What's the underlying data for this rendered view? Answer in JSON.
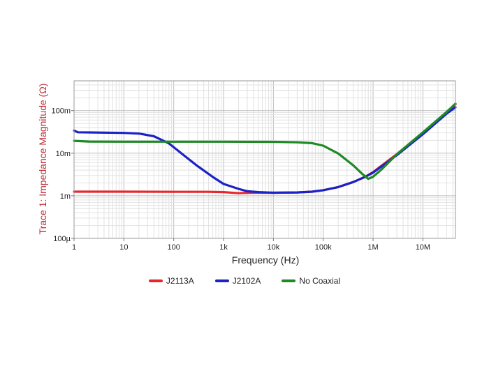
{
  "chart_data": {
    "type": "line",
    "xscale": "log",
    "yscale": "log",
    "xlabel": "Frequency (Hz)",
    "ylabel": "Trace 1: Impedance Magnitude (Ω)",
    "xlim": [
      1,
      45000000
    ],
    "ylim": [
      0.0001,
      0.5
    ],
    "x_ticks": [
      {
        "value": 1,
        "label": "1"
      },
      {
        "value": 10,
        "label": "10"
      },
      {
        "value": 100,
        "label": "100"
      },
      {
        "value": 1000,
        "label": "1k"
      },
      {
        "value": 10000,
        "label": "10k"
      },
      {
        "value": 100000,
        "label": "100k"
      },
      {
        "value": 1000000,
        "label": "1M"
      },
      {
        "value": 10000000,
        "label": "10M"
      }
    ],
    "y_ticks": [
      {
        "value": 0.0001,
        "label": "100µ"
      },
      {
        "value": 0.001,
        "label": "1m"
      },
      {
        "value": 0.01,
        "label": "10m"
      },
      {
        "value": 0.1,
        "label": "100m"
      }
    ],
    "grid": true,
    "legend_position": "bottom-center",
    "series": [
      {
        "name": "J2113A",
        "color": "#e8262b",
        "points": [
          [
            1,
            0.00125
          ],
          [
            10,
            0.00125
          ],
          [
            100,
            0.00124
          ],
          [
            500,
            0.00124
          ],
          [
            1000,
            0.00122
          ],
          [
            2000,
            0.00115
          ],
          [
            3000,
            0.00117
          ],
          [
            5000,
            0.00118
          ],
          [
            10000,
            0.00118
          ],
          [
            30000,
            0.0012
          ],
          [
            60000,
            0.00125
          ],
          [
            100000,
            0.00135
          ],
          [
            200000,
            0.0016
          ],
          [
            400000,
            0.0021
          ],
          [
            700000,
            0.0028
          ],
          [
            1000000,
            0.0036
          ],
          [
            3000000,
            0.0095
          ],
          [
            10000000,
            0.03
          ],
          [
            30000000,
            0.092
          ],
          [
            45000000,
            0.14
          ]
        ]
      },
      {
        "name": "J2102A",
        "color": "#1a22c8",
        "points": [
          [
            1,
            0.034
          ],
          [
            1.2,
            0.031
          ],
          [
            10,
            0.03
          ],
          [
            20,
            0.029
          ],
          [
            40,
            0.025
          ],
          [
            80,
            0.017
          ],
          [
            150,
            0.0095
          ],
          [
            300,
            0.005
          ],
          [
            600,
            0.0028
          ],
          [
            1000,
            0.0019
          ],
          [
            2000,
            0.00145
          ],
          [
            3000,
            0.00128
          ],
          [
            5000,
            0.00122
          ],
          [
            10000,
            0.00118
          ],
          [
            30000,
            0.0012
          ],
          [
            60000,
            0.00125
          ],
          [
            100000,
            0.00135
          ],
          [
            200000,
            0.0016
          ],
          [
            400000,
            0.0021
          ],
          [
            700000,
            0.0028
          ],
          [
            1000000,
            0.0035
          ],
          [
            3000000,
            0.009
          ],
          [
            10000000,
            0.028
          ],
          [
            30000000,
            0.085
          ],
          [
            45000000,
            0.12
          ]
        ]
      },
      {
        "name": "No Coaxial",
        "color": "#1e8a24",
        "points": [
          [
            1,
            0.0195
          ],
          [
            2,
            0.0188
          ],
          [
            10,
            0.0186
          ],
          [
            100,
            0.0186
          ],
          [
            1000,
            0.0186
          ],
          [
            10000,
            0.0185
          ],
          [
            30000,
            0.0181
          ],
          [
            60000,
            0.0172
          ],
          [
            100000,
            0.015
          ],
          [
            200000,
            0.0098
          ],
          [
            400000,
            0.0052
          ],
          [
            600000,
            0.0033
          ],
          [
            800000,
            0.0025
          ],
          [
            1000000,
            0.0028
          ],
          [
            1500000,
            0.0042
          ],
          [
            3000000,
            0.0095
          ],
          [
            10000000,
            0.031
          ],
          [
            30000000,
            0.093
          ],
          [
            45000000,
            0.145
          ]
        ]
      }
    ]
  }
}
